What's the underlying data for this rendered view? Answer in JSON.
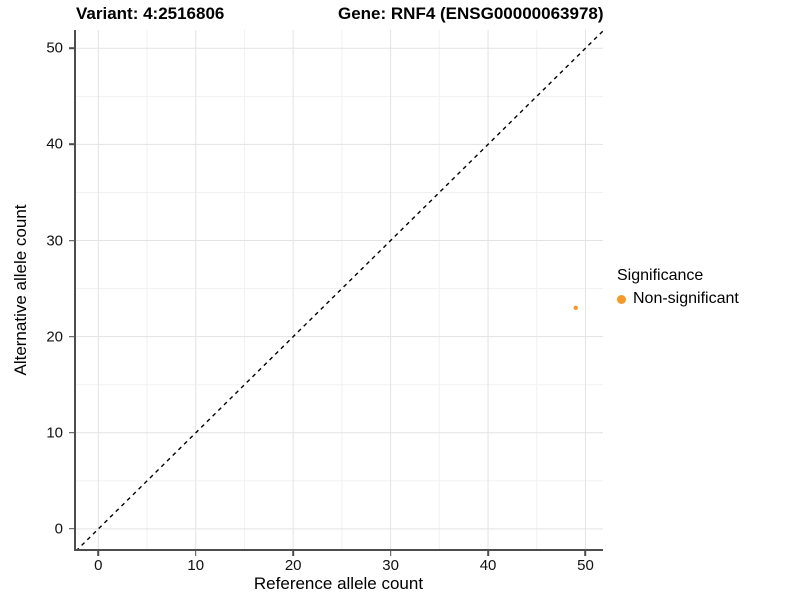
{
  "header": {
    "variant_title": "Variant: 4:2516806",
    "gene_title": "Gene: RNF4 (ENSG00000063978)"
  },
  "legend": {
    "title": "Significance",
    "items": [
      {
        "label": "Non-significant",
        "color": "#F89827"
      }
    ]
  },
  "colors": {
    "point_orange": "#F89827",
    "grid_major": "#E3E3E3",
    "grid_minor": "#F1F1F1",
    "axis_line": "#4D4D4D",
    "reference_line": "#000000",
    "text": "#000000"
  },
  "chart_data": {
    "type": "scatter",
    "titles": [
      "Variant: 4:2516806",
      "Gene: RNF4 (ENSG00000063978)"
    ],
    "xlabel": "Reference allele count",
    "ylabel": "Alternative allele count",
    "xlim": [
      -2.5,
      51.8
    ],
    "ylim": [
      -2.3,
      51.9
    ],
    "x_major_ticks": [
      0,
      10,
      20,
      30,
      40,
      50
    ],
    "y_major_ticks": [
      0,
      10,
      20,
      30,
      40,
      50
    ],
    "x_minor_gridlines": [
      5,
      15,
      25,
      35,
      45
    ],
    "y_minor_gridlines": [
      5,
      15,
      25,
      35,
      45
    ],
    "grid": "on",
    "legend_position": "right",
    "reference_line": {
      "type": "identity y=x",
      "style": "dashed",
      "color": "#000000"
    },
    "series": [
      {
        "name": "Non-significant",
        "color": "#F89827",
        "marker": "circle",
        "points": [
          {
            "x": 49,
            "y": 23
          }
        ]
      }
    ]
  }
}
